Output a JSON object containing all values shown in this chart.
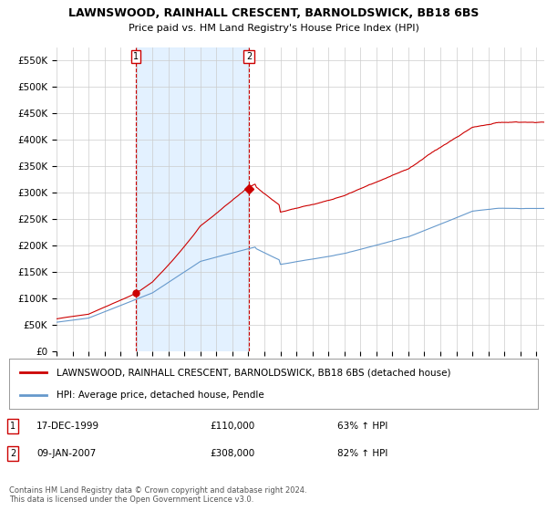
{
  "title": "LAWNSWOOD, RAINHALL CRESCENT, BARNOLDSWICK, BB18 6BS",
  "subtitle": "Price paid vs. HM Land Registry's House Price Index (HPI)",
  "legend_line1": "LAWNSWOOD, RAINHALL CRESCENT, BARNOLDSWICK, BB18 6BS (detached house)",
  "legend_line2": "HPI: Average price, detached house, Pendle",
  "table_row1": [
    "1",
    "17-DEC-1999",
    "£110,000",
    "63% ↑ HPI"
  ],
  "table_row2": [
    "2",
    "09-JAN-2007",
    "£308,000",
    "82% ↑ HPI"
  ],
  "footnote": "Contains HM Land Registry data © Crown copyright and database right 2024.\nThis data is licensed under the Open Government Licence v3.0.",
  "house_color": "#cc0000",
  "hpi_color": "#6699cc",
  "shade_color": "#ddeeff",
  "marker_color": "#cc0000",
  "ylim": [
    0,
    575000
  ],
  "yticks": [
    0,
    50000,
    100000,
    150000,
    200000,
    250000,
    300000,
    350000,
    400000,
    450000,
    500000,
    550000
  ],
  "ytick_labels": [
    "£0",
    "£50K",
    "£100K",
    "£150K",
    "£200K",
    "£250K",
    "£300K",
    "£350K",
    "£400K",
    "£450K",
    "£500K",
    "£550K"
  ],
  "sale1_x": 1999.96,
  "sale1_y": 110000,
  "sale2_x": 2007.03,
  "sale2_y": 308000,
  "xlim_left": 1995.0,
  "xlim_right": 2025.5
}
